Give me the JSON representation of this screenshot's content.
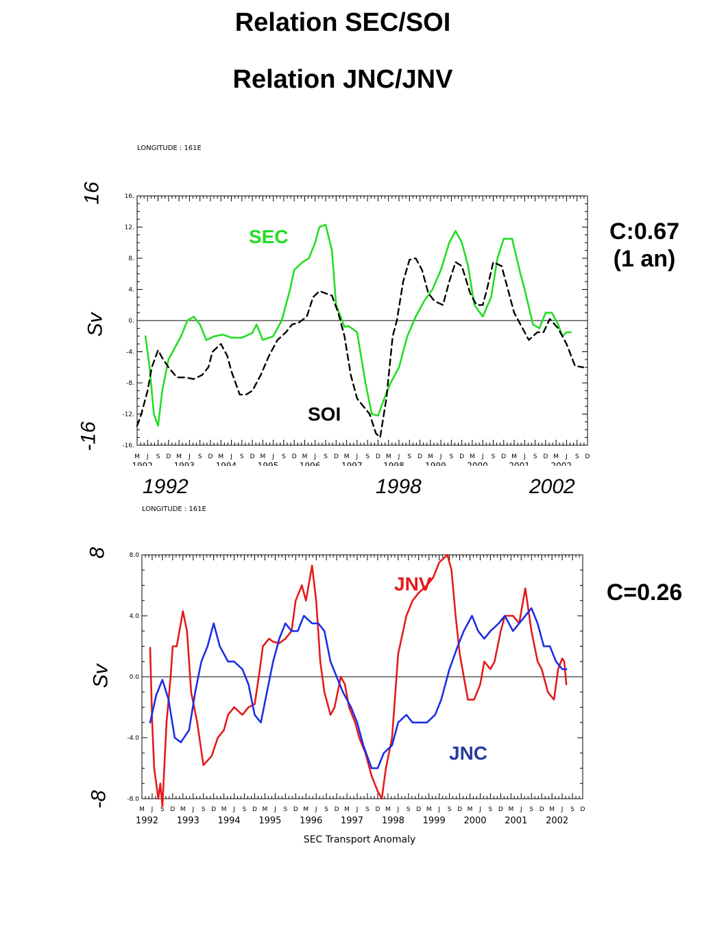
{
  "page": {
    "title1": "Relation SEC/SOI",
    "title2": "Relation JNC/JNV"
  },
  "colors": {
    "sec": "#22dd22",
    "soi": "#000000",
    "jnv": "#e41a1a",
    "jnc": "#1a2ee4"
  },
  "month_labels": [
    "M",
    "J",
    "S",
    "D"
  ],
  "chart_data": [
    {
      "type": "line",
      "header": "LONGITUDE : 161E",
      "ylim": [
        -16,
        16
      ],
      "yticks": [
        "16.",
        "12.",
        "8.",
        "4.",
        "0.",
        "-4.",
        "-8.",
        "-12.",
        "-16."
      ],
      "ytick_values": [
        16,
        12,
        8,
        4,
        0,
        -4,
        -8,
        -12,
        -16
      ],
      "xlim": [
        1992.25,
        2003.0
      ],
      "years": [
        "1992",
        "1993",
        "1994",
        "1995",
        "1996",
        "1997",
        "1998",
        "1999",
        "2000",
        "2001",
        "2002"
      ],
      "side_labels": {
        "top": "16",
        "bottom": "-16",
        "unit": "Sv"
      },
      "big_years": [
        "1992",
        "1998",
        "2002"
      ],
      "correlation": [
        "C:0.67",
        "(1 an)"
      ],
      "series": [
        {
          "name": "SEC",
          "style": "solid",
          "color": "#22dd22",
          "x": [
            1992.45,
            1992.55,
            1992.65,
            1992.75,
            1992.85,
            1993.0,
            1993.15,
            1993.3,
            1993.45,
            1993.6,
            1993.75,
            1993.9,
            1994.1,
            1994.3,
            1994.5,
            1994.75,
            1995.0,
            1995.1,
            1995.25,
            1995.5,
            1995.7,
            1995.9,
            1996.0,
            1996.2,
            1996.35,
            1996.5,
            1996.6,
            1996.75,
            1996.9,
            1997.0,
            1997.2,
            1997.3,
            1997.5,
            1997.7,
            1997.85,
            1998.0,
            1998.15,
            1998.3,
            1998.5,
            1998.7,
            1998.9,
            1999.1,
            1999.3,
            1999.5,
            1999.7,
            1999.85,
            2000.0,
            2000.15,
            2000.3,
            2000.5,
            2000.7,
            2000.85,
            2001.0,
            2001.2,
            2001.4,
            2001.5,
            2001.7,
            2001.85,
            2002.0,
            2002.15,
            2002.3,
            2002.4,
            2002.5,
            2002.6
          ],
          "y": [
            -2,
            -6,
            -12,
            -13.5,
            -9,
            -5,
            -3.5,
            -2,
            0,
            0.5,
            -0.5,
            -2.5,
            -2,
            -1.8,
            -2.2,
            -2.2,
            -1.6,
            -0.5,
            -2.5,
            -2,
            0,
            4,
            6.5,
            7.5,
            8,
            10,
            12,
            12.3,
            9,
            2,
            -0.8,
            -0.7,
            -1.5,
            -8,
            -12,
            -12.2,
            -10,
            -8,
            -6,
            -2,
            0.5,
            2.5,
            4,
            6.5,
            10,
            11.5,
            10,
            7,
            2,
            0.5,
            3,
            8,
            10.5,
            10.5,
            6,
            4,
            -0.5,
            -1,
            1,
            1,
            -0.5,
            -2,
            -1.5,
            -1.5
          ]
        },
        {
          "name": "SOI",
          "style": "dashed",
          "color": "#000000",
          "x": [
            1992.25,
            1992.35,
            1992.5,
            1992.6,
            1992.75,
            1992.85,
            1993.0,
            1993.2,
            1993.4,
            1993.6,
            1993.8,
            1993.95,
            1994.05,
            1994.25,
            1994.4,
            1994.5,
            1994.7,
            1994.85,
            1995.0,
            1995.2,
            1995.4,
            1995.6,
            1995.8,
            1995.95,
            1996.1,
            1996.3,
            1996.45,
            1996.6,
            1996.75,
            1996.9,
            1997.05,
            1997.2,
            1997.35,
            1997.5,
            1997.65,
            1997.8,
            1997.95,
            1998.05,
            1998.2,
            1998.35,
            1998.45,
            1998.6,
            1998.75,
            1998.9,
            1999.05,
            1999.2,
            1999.35,
            1999.55,
            1999.7,
            1999.85,
            2000.0,
            2000.2,
            2000.35,
            2000.5,
            2000.6,
            2000.75,
            2000.95,
            2001.1,
            2001.25,
            2001.45,
            2001.6,
            2001.8,
            2001.95,
            2002.1,
            2002.3,
            2002.5,
            2002.7,
            2002.9
          ],
          "y": [
            -13.5,
            -12,
            -9,
            -6,
            -3.8,
            -4.8,
            -6,
            -7.3,
            -7.3,
            -7.5,
            -7,
            -6,
            -4,
            -3,
            -4.5,
            -6.5,
            -9.5,
            -9.5,
            -9,
            -7,
            -4.5,
            -2.5,
            -1.5,
            -0.5,
            -0.3,
            0.5,
            3,
            3.8,
            3.5,
            3.2,
            1,
            -2,
            -7,
            -10,
            -11,
            -12,
            -14.5,
            -15,
            -10,
            -2,
            0,
            5,
            7.8,
            8,
            6.5,
            3.5,
            2.5,
            2,
            5,
            7.5,
            7,
            3.5,
            2,
            2,
            4,
            7.5,
            7,
            4,
            1,
            -1,
            -2.5,
            -1.5,
            -1.5,
            0.2,
            -1,
            -3,
            -5.8,
            -6
          ]
        }
      ]
    },
    {
      "type": "line",
      "header": "LONGITUDE : 161E",
      "ylim": [
        -8,
        8
      ],
      "yticks": [
        "8.0",
        "4.0",
        "0.0",
        "-4.0",
        "-8.0"
      ],
      "ytick_values": [
        8,
        4,
        0,
        -4,
        -8
      ],
      "xlim": [
        1992.25,
        2003.0
      ],
      "years": [
        "1992",
        "1993",
        "1994",
        "1995",
        "1996",
        "1997",
        "1998",
        "1999",
        "2000",
        "2001",
        "2002"
      ],
      "side_labels": {
        "top": "8",
        "bottom": "-8",
        "unit": "Sv"
      },
      "xlabel": "SEC Transport Anomaly",
      "correlation": [
        "C=0.26"
      ],
      "series": [
        {
          "name": "JNV",
          "style": "solid",
          "color": "#e41a1a",
          "x": [
            1992.45,
            1992.5,
            1992.55,
            1992.65,
            1992.7,
            1992.75,
            1992.85,
            1992.95,
            1993.0,
            1993.1,
            1993.25,
            1993.35,
            1993.45,
            1993.6,
            1993.75,
            1993.85,
            1993.95,
            1994.1,
            1994.25,
            1994.35,
            1994.5,
            1994.7,
            1994.85,
            1995.0,
            1995.1,
            1995.2,
            1995.35,
            1995.45,
            1995.6,
            1995.75,
            1995.9,
            1996.0,
            1996.15,
            1996.25,
            1996.4,
            1996.5,
            1996.6,
            1996.7,
            1996.85,
            1996.95,
            1997.1,
            1997.2,
            1997.3,
            1997.45,
            1997.55,
            1997.7,
            1997.85,
            1998.0,
            1998.1,
            1998.2,
            1998.35,
            1998.5,
            1998.7,
            1998.85,
            1999.0,
            1999.2,
            1999.35,
            1999.5,
            1999.7,
            1999.8,
            1999.9,
            2000.0,
            2000.2,
            2000.35,
            2000.5,
            2000.6,
            2000.75,
            2000.85,
            2001.0,
            2001.1,
            2001.3,
            2001.45,
            2001.6,
            2001.75,
            2001.9,
            2002.0,
            2002.15,
            2002.3,
            2002.4,
            2002.5,
            2002.55,
            2002.6
          ],
          "y": [
            1.9,
            -3,
            -6,
            -8,
            -7,
            -8.5,
            -3,
            0,
            2,
            2,
            4.3,
            3,
            -1,
            -3,
            -5.8,
            -5.5,
            -5.2,
            -4,
            -3.5,
            -2.5,
            -2,
            -2.5,
            -2,
            -1.8,
            0,
            2,
            2.5,
            2.3,
            2.2,
            2.5,
            3,
            5,
            6,
            5,
            7.3,
            5,
            1,
            -1,
            -2.5,
            -2,
            0,
            -0.5,
            -2,
            -3,
            -4,
            -5,
            -6.5,
            -7.5,
            -8,
            -6,
            -4,
            1.5,
            4,
            5,
            5.5,
            6,
            6.5,
            7.5,
            8,
            7,
            4,
            1.5,
            -1.5,
            -1.5,
            -0.5,
            1,
            0.5,
            1,
            3,
            4,
            4,
            3.5,
            5.8,
            3,
            1,
            0.5,
            -1,
            -1.5,
            0.5,
            1.2,
            1,
            -0.5
          ]
        },
        {
          "name": "JNC",
          "style": "solid",
          "color": "#1a2ee4",
          "x": [
            1992.45,
            1992.6,
            1992.75,
            1992.9,
            1993.05,
            1993.2,
            1993.4,
            1993.55,
            1993.7,
            1993.85,
            1994.0,
            1994.15,
            1994.35,
            1994.5,
            1994.7,
            1994.85,
            1995.0,
            1995.15,
            1995.3,
            1995.45,
            1995.6,
            1995.75,
            1995.9,
            1996.05,
            1996.2,
            1996.4,
            1996.55,
            1996.7,
            1996.85,
            1997.0,
            1997.15,
            1997.35,
            1997.5,
            1997.65,
            1997.85,
            1998.0,
            1998.15,
            1998.35,
            1998.5,
            1998.7,
            1998.85,
            1999.0,
            1999.2,
            1999.4,
            1999.55,
            1999.75,
            1999.95,
            2000.1,
            2000.3,
            2000.45,
            2000.6,
            2000.75,
            2000.95,
            2001.1,
            2001.3,
            2001.45,
            2001.6,
            2001.75,
            2001.9,
            2002.05,
            2002.2,
            2002.35,
            2002.5,
            2002.6
          ],
          "y": [
            -3,
            -1.2,
            -0.2,
            -1.5,
            -4,
            -4.3,
            -3.5,
            -1,
            1,
            2,
            3.5,
            2,
            1,
            1,
            0.5,
            -0.5,
            -2.5,
            -3,
            -1,
            1,
            2.5,
            3.5,
            3,
            3,
            4,
            3.5,
            3.5,
            3,
            1,
            0,
            -1,
            -2,
            -3,
            -4.5,
            -6,
            -6,
            -5,
            -4.5,
            -3,
            -2.5,
            -3,
            -3,
            -3,
            -2.5,
            -1.5,
            0.5,
            2,
            3,
            4,
            3,
            2.5,
            3,
            3.5,
            4,
            3,
            3.5,
            4,
            4.5,
            3.5,
            2,
            2,
            1,
            0.5,
            0.5
          ]
        }
      ]
    }
  ]
}
